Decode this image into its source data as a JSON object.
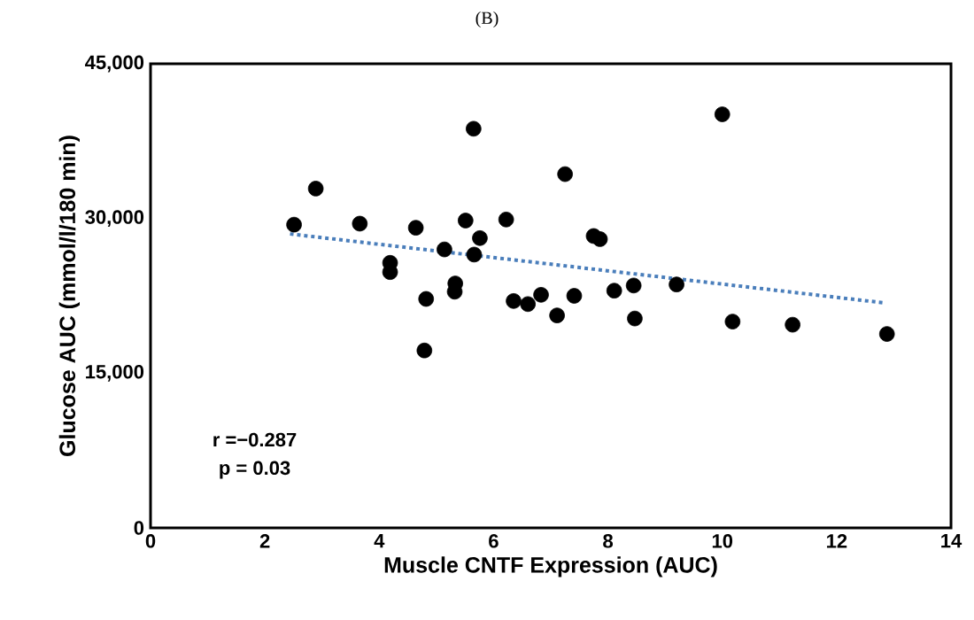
{
  "chart_data": {
    "type": "scatter",
    "title": "(B)",
    "xlabel": "Muscle CNTF Expression (AUC)",
    "ylabel": "Glucose AUC (mmol/l/180 min)",
    "annotations": [
      "r =−0.287",
      "p = 0.03"
    ],
    "xlim": [
      0,
      14
    ],
    "xticks": [
      0,
      2,
      4,
      6,
      8,
      10,
      12,
      14
    ],
    "ylim": [
      0,
      45000
    ],
    "yticks": [
      {
        "value": 0,
        "label": "0"
      },
      {
        "value": 15000,
        "label": "15,000"
      },
      {
        "value": 30000,
        "label": "30,000"
      },
      {
        "value": 45000,
        "label": "45,000"
      }
    ],
    "grid": false,
    "series": [
      {
        "color": "#000000",
        "marker": "circle",
        "x": [
          2.51,
          2.89,
          3.66,
          4.19,
          4.19,
          4.64,
          4.82,
          4.79,
          5.14,
          5.33,
          5.32,
          5.51,
          5.65,
          5.66,
          5.76,
          6.22,
          6.35,
          6.6,
          6.83,
          7.11,
          7.25,
          7.41,
          7.75,
          7.86,
          8.11,
          8.45,
          8.47,
          9.2,
          10.0,
          10.18,
          11.23,
          12.88
        ],
        "values": [
          29400,
          32900,
          29500,
          25700,
          24800,
          29100,
          22200,
          17200,
          27000,
          23700,
          22900,
          29800,
          38700,
          26500,
          28100,
          29900,
          22000,
          21700,
          22600,
          20600,
          34300,
          22500,
          28300,
          28000,
          23000,
          23500,
          20300,
          23600,
          40100,
          20000,
          19700,
          18800
        ]
      },
      {
        "type": "line",
        "color": "#4a7ebb",
        "line_style": "dotted",
        "marker": "none",
        "x": [
          2.44,
          12.86
        ],
        "values": [
          28500,
          21800
        ]
      }
    ]
  }
}
